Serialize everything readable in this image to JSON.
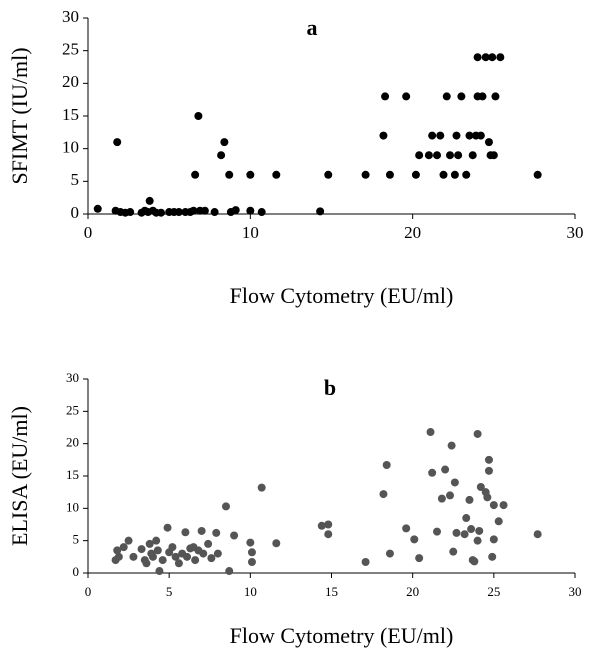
{
  "chart_data": [
    {
      "type": "scatter",
      "title": "a",
      "x_label": "Flow Cytometry (EU/ml)",
      "y_label": "SFIMT (IU/ml)",
      "color": "#000000",
      "x": [
        0.6,
        1.7,
        1.8,
        2,
        2.3,
        2.6,
        3.3,
        3.5,
        3.7,
        3.8,
        4,
        4.2,
        4.5,
        5,
        5.3,
        5.6,
        6,
        6.3,
        6.5,
        6.6,
        6.8,
        6.9,
        7.2,
        7.8,
        8.2,
        8.4,
        8.7,
        8.8,
        9.1,
        10,
        10,
        10.7,
        11.6,
        14.3,
        14.8,
        17.1,
        18.2,
        18.3,
        18.6,
        19.6,
        20.2,
        20.4,
        21,
        21.2,
        21.5,
        21.7,
        21.9,
        22.1,
        22.3,
        22.6,
        22.7,
        22.8,
        23,
        23.3,
        23.5,
        23.7,
        23.9,
        24,
        24,
        24.2,
        24.3,
        24.5,
        24.7,
        24.8,
        24.9,
        25,
        25.1,
        25.4,
        27.7
      ],
      "values": [
        0.8,
        0.5,
        11,
        0.3,
        0.2,
        0.3,
        0.2,
        0.5,
        0.3,
        2,
        0.5,
        0.2,
        0.2,
        0.3,
        0.3,
        0.3,
        0.3,
        0.3,
        0.5,
        6,
        15,
        0.5,
        0.5,
        0.3,
        9,
        11,
        6,
        0.3,
        0.6,
        6,
        0.5,
        0.3,
        6,
        0.4,
        6,
        6,
        12,
        18,
        6,
        18,
        6,
        9,
        9,
        12,
        9,
        12,
        6,
        18,
        9,
        6,
        12,
        9,
        18,
        6,
        12,
        9,
        12,
        24,
        18,
        12,
        18,
        24,
        11,
        9,
        24,
        9,
        18,
        24,
        6
      ],
      "xlim": [
        0,
        30
      ],
      "ylim": [
        0,
        30
      ],
      "xticks": [
        0,
        10,
        20,
        30
      ],
      "yticks": [
        0,
        5,
        10,
        15,
        20,
        25,
        30
      ]
    },
    {
      "type": "scatter",
      "title": "b",
      "x_label": "Flow Cytometry (EU/ml)",
      "y_label": "ELISA (EU/ml)",
      "color": "#555555",
      "x": [
        1.7,
        1.8,
        1.9,
        2.2,
        2.5,
        2.8,
        3.3,
        3.5,
        3.6,
        3.8,
        3.9,
        4,
        4.2,
        4.3,
        4.4,
        4.6,
        4.9,
        5,
        5.2,
        5.4,
        5.6,
        5.8,
        6,
        6.1,
        6.3,
        6.5,
        6.6,
        6.8,
        7,
        7.1,
        7.4,
        7.6,
        7.9,
        8,
        8.5,
        8.7,
        9,
        10,
        10.1,
        10.1,
        10.7,
        11.6,
        14.4,
        14.8,
        14.8,
        17.1,
        18.2,
        18.4,
        18.6,
        19.6,
        20.1,
        20.4,
        21.1,
        21.2,
        21.5,
        21.8,
        22,
        22.3,
        22.4,
        22.5,
        22.6,
        22.7,
        23.2,
        23.3,
        23.5,
        23.6,
        23.7,
        23.8,
        24,
        24,
        24.1,
        24.2,
        24.5,
        24.6,
        24.7,
        24.7,
        24.9,
        25,
        25,
        25.3,
        25.6,
        27.7
      ],
      "values": [
        2,
        3.5,
        2.5,
        4,
        5,
        2.5,
        3.7,
        2,
        1.5,
        4.5,
        3,
        2.5,
        5,
        3.5,
        0.3,
        2,
        7,
        3.2,
        4,
        2.5,
        1.5,
        3,
        6.3,
        2.5,
        3.8,
        4,
        2,
        3.5,
        6.5,
        3,
        4.5,
        2.3,
        6.2,
        3,
        10.3,
        0.3,
        5.8,
        4.7,
        3.2,
        1.7,
        13.2,
        4.6,
        7.3,
        7.5,
        6,
        1.7,
        12.2,
        16.7,
        3,
        6.9,
        5.2,
        2.3,
        21.8,
        15.5,
        6.4,
        11.5,
        16,
        12,
        19.7,
        3.3,
        14,
        6.2,
        6,
        8.5,
        11.3,
        6.8,
        2,
        1.8,
        21.5,
        5,
        6.5,
        13.3,
        12.5,
        11.7,
        17.5,
        15.8,
        2.5,
        5.2,
        10.5,
        8,
        10.5,
        6
      ],
      "xlim": [
        0,
        30
      ],
      "ylim": [
        0,
        30
      ],
      "xticks": [
        0,
        5,
        10,
        15,
        20,
        25,
        30
      ],
      "yticks": [
        0,
        5,
        10,
        15,
        20,
        25,
        30
      ]
    }
  ]
}
